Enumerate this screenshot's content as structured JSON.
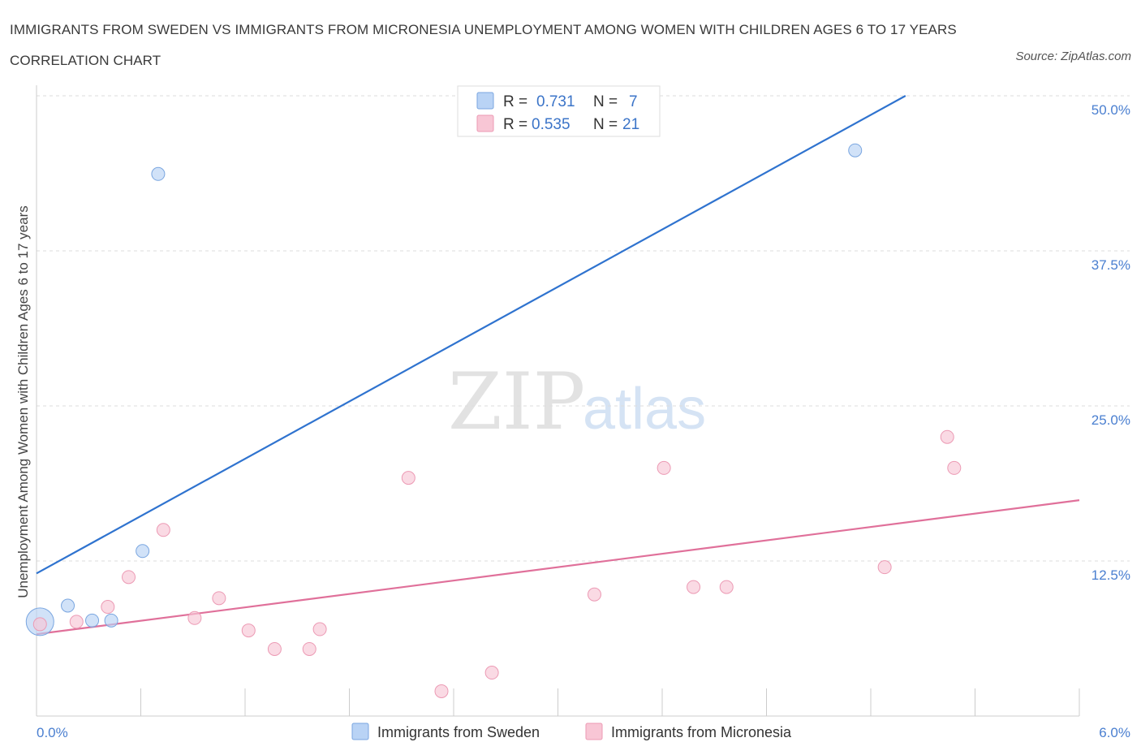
{
  "title": "IMMIGRANTS FROM SWEDEN VS IMMIGRANTS FROM MICRONESIA UNEMPLOYMENT AMONG WOMEN WITH CHILDREN AGES 6 TO 17 YEARS CORRELATION CHART",
  "source": "Source: ZipAtlas.com",
  "watermark": {
    "zip": "ZIP",
    "atlas": "atlas"
  },
  "colors": {
    "sweden_fill": "#b9d3f5",
    "sweden_stroke": "#7aa6e0",
    "sweden_line": "#2f73cf",
    "micronesia_fill": "#f8c6d5",
    "micronesia_stroke": "#ec9ab4",
    "micronesia_line": "#e0709a",
    "tick_label": "#4a7fd0",
    "grid": "#dddddd"
  },
  "legend": {
    "rows": [
      {
        "r_label": "R =",
        "r_value": "0.731",
        "n_label": "N =",
        "n_value": "7"
      },
      {
        "r_label": "R =",
        "r_value": "0.535",
        "n_label": "N =",
        "n_value": "21"
      }
    ]
  },
  "chart_data": {
    "type": "scatter",
    "title": "IMMIGRANTS FROM SWEDEN VS IMMIGRANTS FROM MICRONESIA UNEMPLOYMENT AMONG WOMEN WITH CHILDREN AGES 6 TO 17 YEARS CORRELATION CHART",
    "xlabel": "",
    "ylabel": "Unemployment Among Women with Children Ages 6 to 17 years",
    "xlim": [
      0,
      6.0
    ],
    "ylim": [
      0,
      50.0
    ],
    "x_tick_labels": [
      "0.0%",
      "6.0%"
    ],
    "y_ticks": [
      12.5,
      25.0,
      37.5,
      50.0
    ],
    "y_tick_labels": [
      "12.5%",
      "25.0%",
      "37.5%",
      "50.0%"
    ],
    "grid": "horizontal dashed",
    "legend_position": "top-center and bottom",
    "series": [
      {
        "name": "Immigrants from Sweden",
        "points": [
          {
            "x": 0.02,
            "y": 7.6,
            "large": true
          },
          {
            "x": 0.18,
            "y": 8.9
          },
          {
            "x": 0.32,
            "y": 7.7
          },
          {
            "x": 0.43,
            "y": 7.7
          },
          {
            "x": 0.61,
            "y": 13.3
          },
          {
            "x": 0.7,
            "y": 43.7
          },
          {
            "x": 4.71,
            "y": 45.6
          }
        ],
        "trend": {
          "x1": 0.0,
          "y1": 11.5,
          "x2": 5.0,
          "y2": 50.0
        }
      },
      {
        "name": "Immigrants from Micronesia",
        "points": [
          {
            "x": 0.02,
            "y": 7.4
          },
          {
            "x": 0.23,
            "y": 7.6
          },
          {
            "x": 0.41,
            "y": 8.8
          },
          {
            "x": 0.53,
            "y": 11.2
          },
          {
            "x": 0.73,
            "y": 15.0
          },
          {
            "x": 0.91,
            "y": 7.9
          },
          {
            "x": 1.05,
            "y": 9.5
          },
          {
            "x": 1.22,
            "y": 6.9
          },
          {
            "x": 1.37,
            "y": 5.4
          },
          {
            "x": 1.57,
            "y": 5.4
          },
          {
            "x": 1.63,
            "y": 7.0
          },
          {
            "x": 2.14,
            "y": 19.2
          },
          {
            "x": 2.33,
            "y": 2.0
          },
          {
            "x": 2.62,
            "y": 3.5
          },
          {
            "x": 3.21,
            "y": 9.8
          },
          {
            "x": 3.61,
            "y": 20.0
          },
          {
            "x": 3.78,
            "y": 10.4
          },
          {
            "x": 3.97,
            "y": 10.4
          },
          {
            "x": 4.88,
            "y": 12.0
          },
          {
            "x": 5.24,
            "y": 22.5
          },
          {
            "x": 5.28,
            "y": 20.0
          }
        ],
        "trend": {
          "x1": 0.0,
          "y1": 6.6,
          "x2": 6.0,
          "y2": 17.4
        }
      }
    ]
  }
}
